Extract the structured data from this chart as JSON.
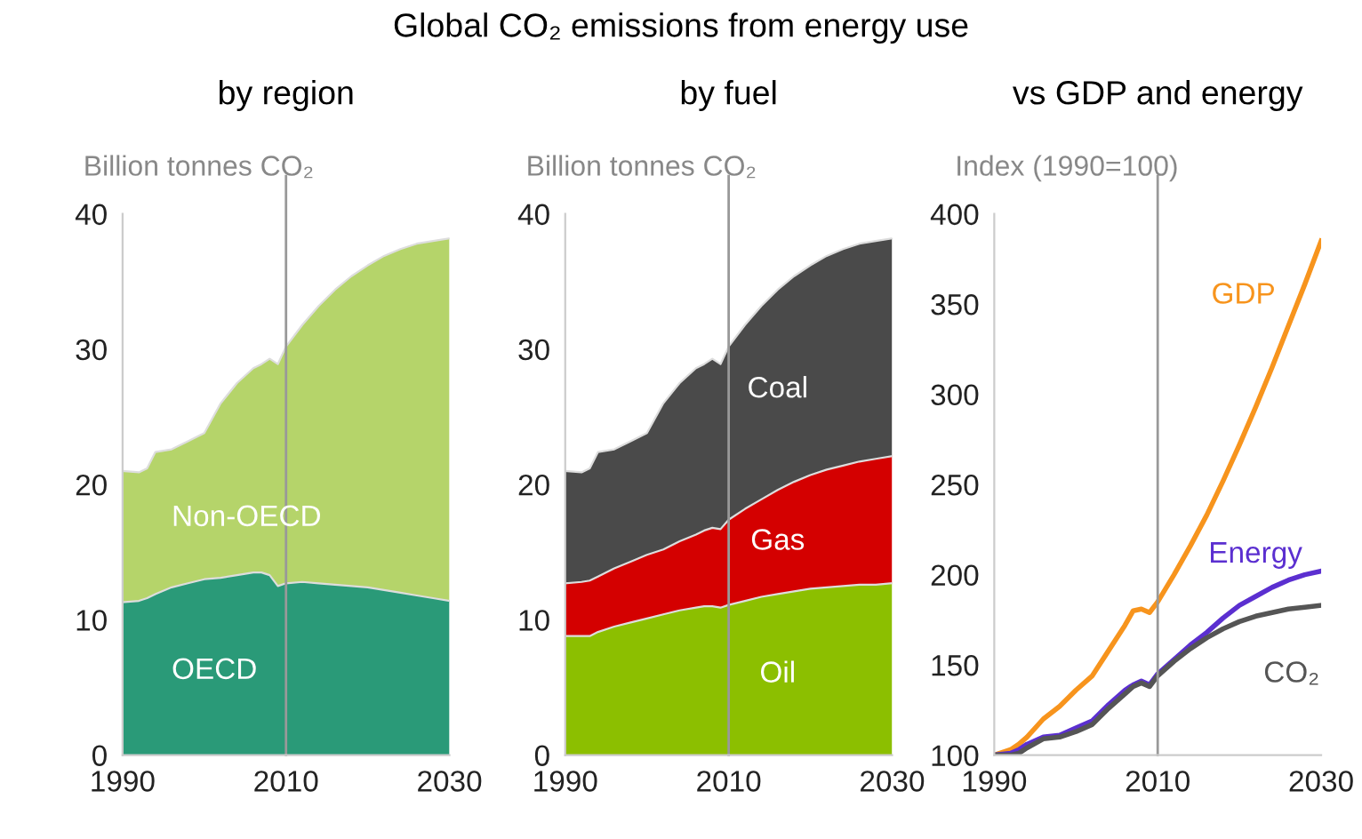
{
  "chart_data": [
    {
      "type": "area",
      "stacked": true,
      "subtitle": "by region",
      "ylabel": "Billion tonnes CO₂",
      "x": [
        1990,
        1992,
        1993,
        1994,
        1996,
        1998,
        2000,
        2002,
        2004,
        2006,
        2007,
        2008,
        2009,
        2010,
        2012,
        2014,
        2016,
        2018,
        2020,
        2022,
        2024,
        2026,
        2028,
        2030
      ],
      "series": [
        {
          "name": "OECD",
          "color": "#2a9a78",
          "values": [
            11.3,
            11.4,
            11.6,
            11.9,
            12.4,
            12.7,
            13.0,
            13.1,
            13.3,
            13.5,
            13.5,
            13.3,
            12.5,
            12.7,
            12.8,
            12.7,
            12.6,
            12.5,
            12.4,
            12.2,
            12.0,
            11.8,
            11.6,
            11.4
          ]
        },
        {
          "name": "Non-OECD",
          "color": "#b5d46a",
          "values": [
            9.7,
            9.5,
            9.6,
            10.5,
            10.2,
            10.5,
            10.8,
            12.9,
            14.2,
            15.1,
            15.4,
            16.0,
            16.4,
            17.5,
            19.0,
            20.5,
            21.8,
            22.9,
            23.8,
            24.7,
            25.4,
            26.0,
            26.4,
            26.8
          ]
        }
      ],
      "xlim": [
        1990,
        2030
      ],
      "xticks": [
        1990,
        2010,
        2030
      ],
      "ylim": [
        0,
        40
      ],
      "yticks": [
        0,
        10,
        20,
        30,
        40
      ],
      "ref_lines": [
        {
          "axis": "x",
          "value": 2010,
          "color": "#999999"
        }
      ],
      "grid": false,
      "legend": false
    },
    {
      "type": "area",
      "stacked": true,
      "title": "Global CO₂ emissions from energy use",
      "subtitle": "by fuel",
      "ylabel": "Billion tonnes CO₂",
      "x": [
        1990,
        1992,
        1993,
        1994,
        1996,
        1998,
        2000,
        2002,
        2004,
        2006,
        2007,
        2008,
        2009,
        2010,
        2012,
        2014,
        2016,
        2018,
        2020,
        2022,
        2024,
        2026,
        2028,
        2030
      ],
      "series": [
        {
          "name": "Oil",
          "color": "#8cbf00",
          "values": [
            8.8,
            8.8,
            8.8,
            9.1,
            9.5,
            9.8,
            10.1,
            10.4,
            10.7,
            10.9,
            11.0,
            11.0,
            10.9,
            11.1,
            11.4,
            11.7,
            11.9,
            12.1,
            12.3,
            12.4,
            12.5,
            12.6,
            12.6,
            12.7
          ]
        },
        {
          "name": "Gas",
          "color": "#d40000",
          "values": [
            3.9,
            4.0,
            4.1,
            4.1,
            4.3,
            4.5,
            4.7,
            4.8,
            5.1,
            5.4,
            5.6,
            5.8,
            5.8,
            6.3,
            6.8,
            7.2,
            7.7,
            8.1,
            8.4,
            8.7,
            8.9,
            9.1,
            9.3,
            9.4
          ]
        },
        {
          "name": "Coal",
          "color": "#4a4a4a",
          "values": [
            8.3,
            8.1,
            8.3,
            9.2,
            8.8,
            8.9,
            9.0,
            10.8,
            11.7,
            12.3,
            12.3,
            12.5,
            12.2,
            12.8,
            13.6,
            14.3,
            14.8,
            15.2,
            15.5,
            15.8,
            16.0,
            16.1,
            16.1,
            16.1
          ]
        }
      ],
      "xlim": [
        1990,
        2030
      ],
      "xticks": [
        1990,
        2010,
        2030
      ],
      "ylim": [
        0,
        40
      ],
      "yticks": [
        0,
        10,
        20,
        30,
        40
      ],
      "ref_lines": [
        {
          "axis": "x",
          "value": 2010,
          "color": "#999999"
        }
      ],
      "grid": false,
      "legend": false
    },
    {
      "type": "line",
      "subtitle": "vs GDP and energy",
      "ylabel": "Index (1990=100)",
      "x": [
        1990,
        1992,
        1993,
        1994,
        1996,
        1998,
        2000,
        2002,
        2004,
        2006,
        2007,
        2008,
        2009,
        2010,
        2012,
        2014,
        2016,
        2018,
        2020,
        2022,
        2024,
        2026,
        2028,
        2030
      ],
      "series": [
        {
          "name": "GDP",
          "color": "#f7941d",
          "values": [
            100,
            103,
            106,
            110,
            120,
            127,
            136,
            144,
            158,
            172,
            180,
            181,
            179,
            185,
            200,
            216,
            233,
            252,
            272,
            293,
            315,
            338,
            361,
            385
          ]
        },
        {
          "name": "Energy",
          "color": "#5b2fd0",
          "values": [
            100,
            101,
            103,
            106,
            110,
            111,
            115,
            119,
            128,
            136,
            139,
            141,
            139,
            145,
            153,
            161,
            168,
            176,
            183,
            188,
            193,
            197,
            200,
            202
          ]
        },
        {
          "name": "CO₂",
          "color": "#555555",
          "values": [
            100,
            100,
            101,
            104,
            109,
            110,
            113,
            117,
            126,
            134,
            138,
            140,
            138,
            144,
            152,
            159,
            165,
            170,
            174,
            177,
            179,
            181,
            182,
            183
          ]
        }
      ],
      "xlim": [
        1990,
        2030
      ],
      "xticks": [
        1990,
        2010,
        2030
      ],
      "ylim": [
        100,
        400
      ],
      "yticks": [
        100,
        150,
        200,
        250,
        300,
        350,
        400
      ],
      "ref_lines": [
        {
          "axis": "x",
          "value": 2010,
          "color": "#999999"
        }
      ],
      "grid": false,
      "legend": false,
      "marker": "none",
      "line_style": "solid"
    }
  ]
}
